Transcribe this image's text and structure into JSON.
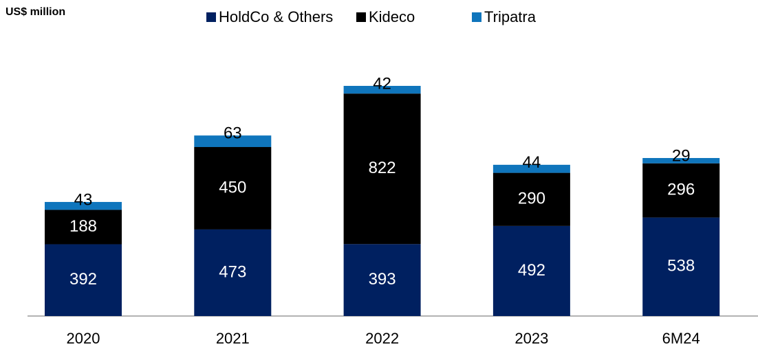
{
  "chart_data": {
    "type": "stacked_bar",
    "unit_label": "US$ million",
    "categories": [
      "2020",
      "2021",
      "2022",
      "2023",
      "6M24"
    ],
    "series": [
      {
        "name": "HoldCo & Others",
        "color": "#002060",
        "values": [
          392,
          473,
          393,
          492,
          538
        ]
      },
      {
        "name": "Kideco",
        "color": "#000000",
        "values": [
          188,
          450,
          822,
          290,
          296
        ]
      },
      {
        "name": "Tripatra",
        "color": "#0f75bc",
        "values": [
          43,
          63,
          42,
          44,
          29
        ]
      }
    ],
    "legend": "top"
  }
}
